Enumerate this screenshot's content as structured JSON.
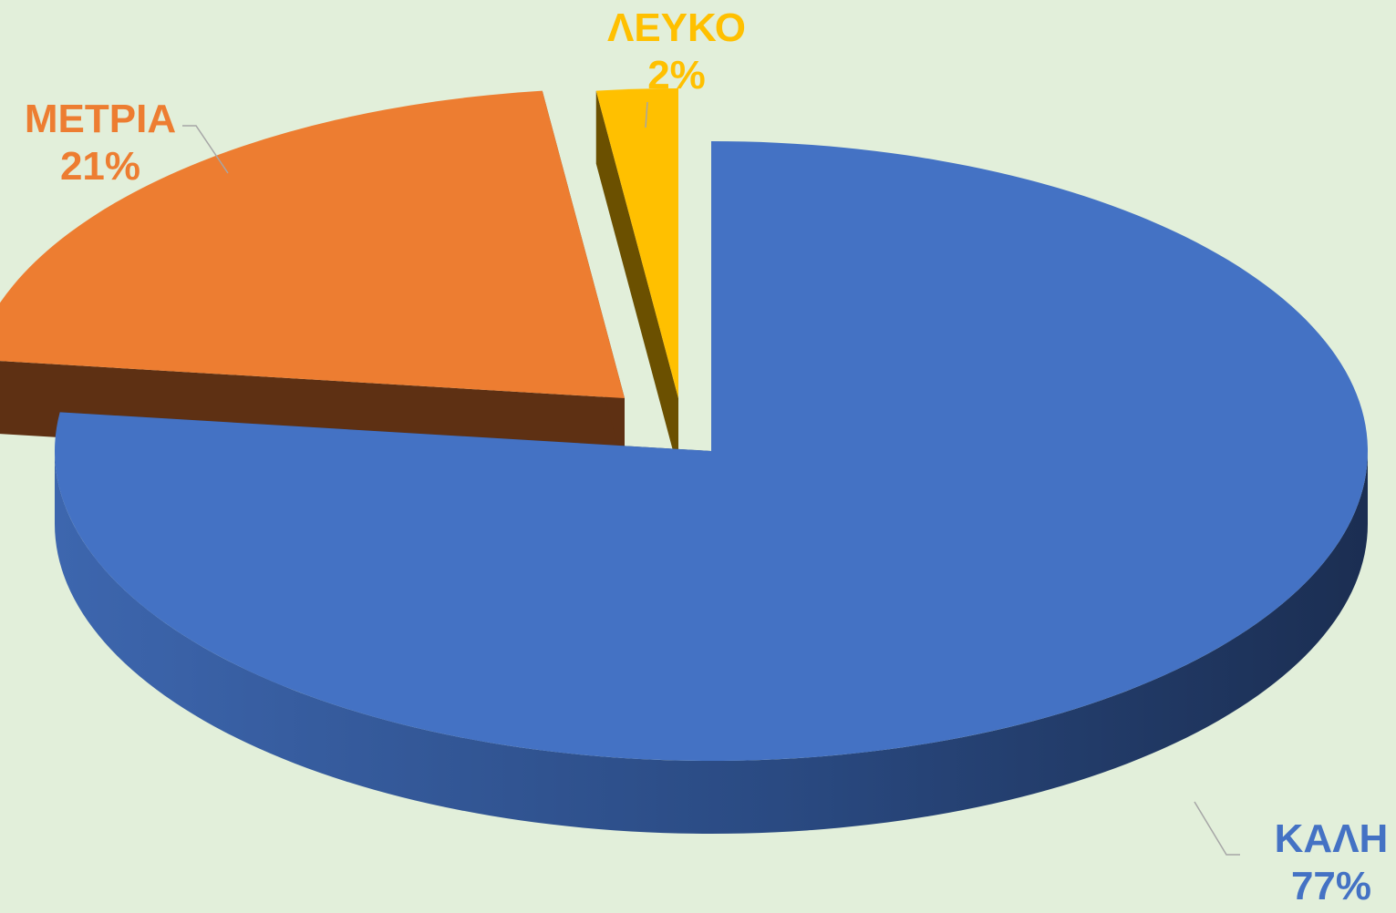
{
  "chart_data": {
    "type": "pie",
    "style": "3d-exploded",
    "slices": [
      {
        "label": "ΚΑΛΗ",
        "value": 77,
        "percent_label": "77%",
        "color": "#4472c4",
        "side_color": "#203864"
      },
      {
        "label": "ΜΕΤΡΙΑ",
        "value": 21,
        "percent_label": "21%",
        "color": "#ed7d31",
        "side_color": "#5e3013"
      },
      {
        "label": "ΛΕΥΚΟ",
        "value": 2,
        "percent_label": "2%",
        "color": "#ffc000",
        "side_color": "#6b5000"
      }
    ],
    "background_color": "#e2efda",
    "legend": "none",
    "data_labels": "category-and-percent"
  }
}
